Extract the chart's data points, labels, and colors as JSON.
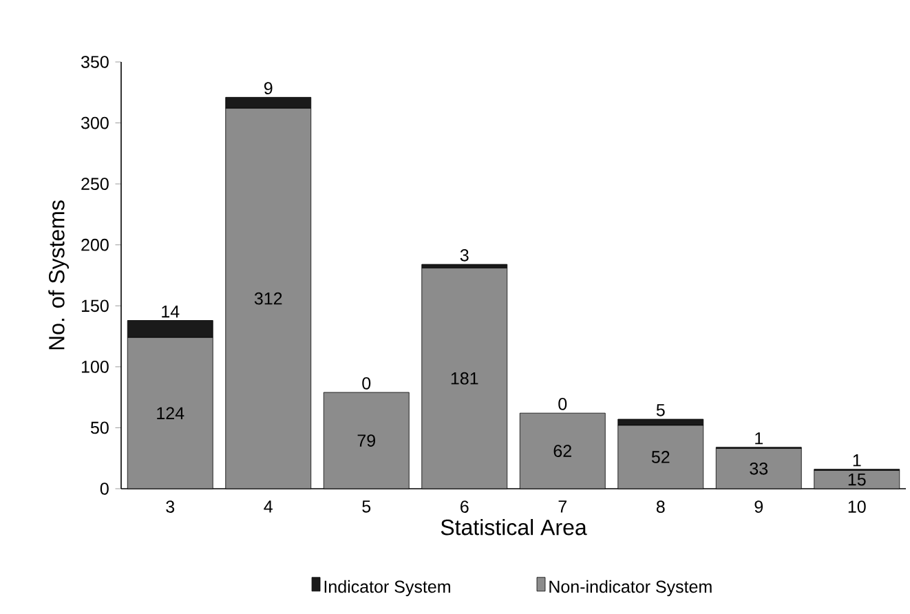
{
  "chart_data": {
    "type": "bar",
    "stacked": true,
    "xlabel": "Statistical Area",
    "ylabel": "No. of Systems",
    "categories": [
      "3",
      "4",
      "5",
      "6",
      "7",
      "8",
      "9",
      "10"
    ],
    "series": [
      {
        "name": "Non-indicator System",
        "color": "#8c8c8c",
        "values": [
          124,
          312,
          79,
          181,
          62,
          52,
          33,
          15
        ]
      },
      {
        "name": "Indicator System",
        "color": "#1a1a1a",
        "values": [
          14,
          9,
          0,
          3,
          0,
          5,
          1,
          1
        ]
      }
    ],
    "ylim": [
      0,
      350
    ],
    "yticks": [
      0,
      50,
      100,
      150,
      200,
      250,
      300,
      350
    ],
    "data_labels": true,
    "legend": "bottom"
  }
}
